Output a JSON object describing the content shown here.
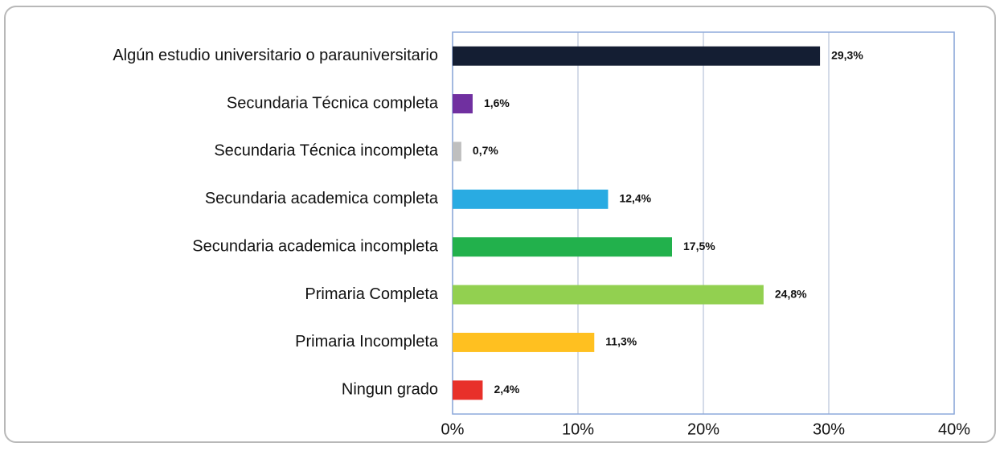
{
  "chart_data": {
    "type": "barh",
    "categories": [
      "Algún estudio universitario o parauniversitario",
      "Secundaria Técnica completa",
      "Secundaria Técnica incompleta",
      "Secundaria academica completa",
      "Secundaria academica incompleta",
      "Primaria Completa",
      "Primaria Incompleta",
      "Ningun grado"
    ],
    "values": [
      29.3,
      1.6,
      0.7,
      12.4,
      17.5,
      24.8,
      11.3,
      2.4
    ],
    "value_labels": [
      "29,3%",
      "1,6%",
      "0,7%",
      "12,4%",
      "17,5%",
      "24,8%",
      "11,3%",
      "2,4%"
    ],
    "colors": [
      "#141e33",
      "#7030a0",
      "#bfbfbf",
      "#29abe2",
      "#22b14c",
      "#92d050",
      "#ffc020",
      "#e8302a"
    ],
    "xlim": [
      0,
      40
    ],
    "xticks": [
      {
        "value": 0,
        "label": "0%"
      },
      {
        "value": 10,
        "label": "10%"
      },
      {
        "value": 20,
        "label": "20%"
      },
      {
        "value": 30,
        "label": "30%"
      },
      {
        "value": 40,
        "label": "40%"
      }
    ],
    "grid": true
  }
}
